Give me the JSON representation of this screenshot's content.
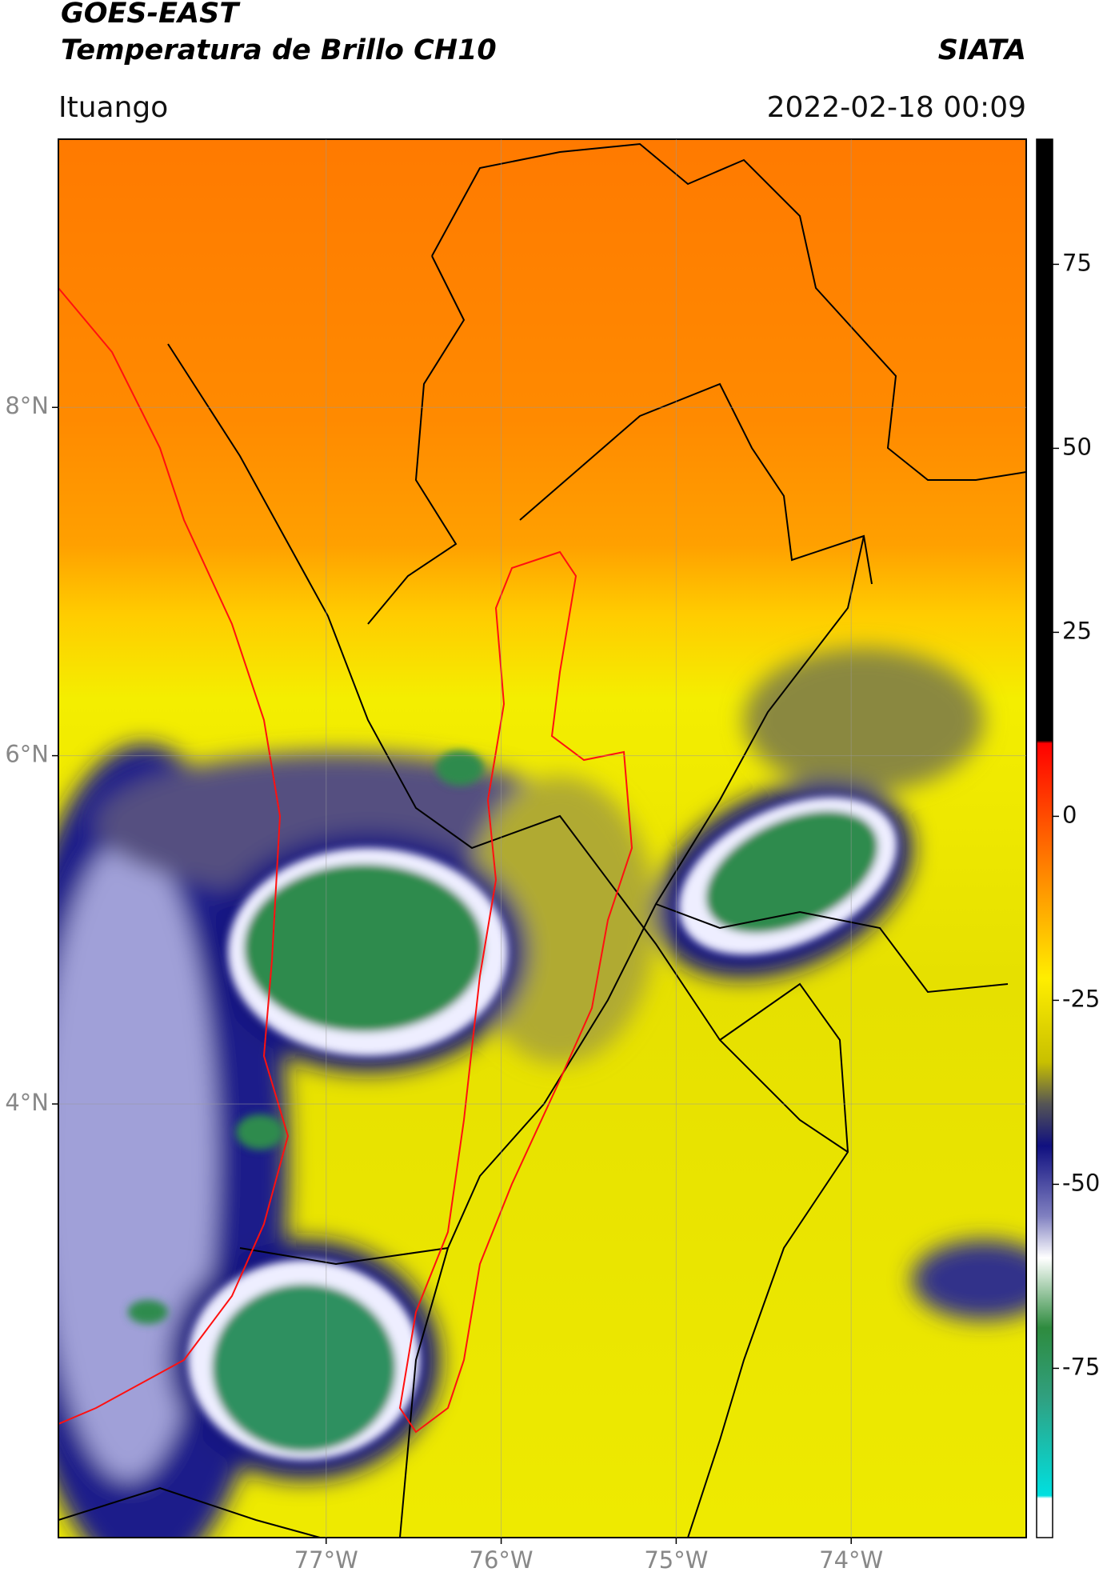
{
  "map": {
    "title": "GOES-EAST",
    "subtitle": "Temperatura de Brillo CH10",
    "source": "SIATA",
    "location": "Ituango",
    "datetime": "2022-02-18 00:09",
    "latlim": [
      1.51,
      9.54
    ],
    "lonlim": [
      -78.53,
      -73.0
    ],
    "yticks": [
      {
        "value": 8,
        "label": "8°N"
      },
      {
        "value": 6,
        "label": "6°N"
      },
      {
        "value": 4,
        "label": "4°N"
      }
    ],
    "xticks": [
      {
        "value": -77,
        "label": "77°W"
      },
      {
        "value": -76,
        "label": "76°W"
      },
      {
        "value": -75,
        "label": "75°W"
      },
      {
        "value": -74,
        "label": "74°W"
      }
    ],
    "colorbar": {
      "lim": [
        -98,
        92
      ],
      "ticks": [
        75,
        50,
        25,
        0,
        -25,
        -50,
        -75
      ]
    },
    "grid": true
  }
}
